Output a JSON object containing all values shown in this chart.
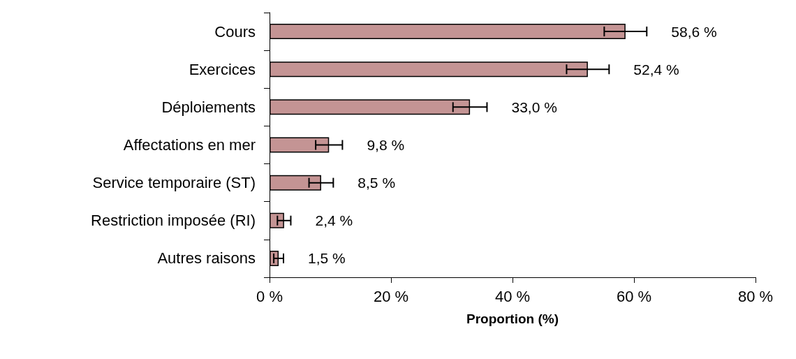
{
  "chart_data": {
    "type": "bar",
    "orientation": "horizontal",
    "xlabel": "Proportion (%)",
    "categories": [
      "Cours",
      "Exercices",
      "Déploiements",
      "Affectations en mer",
      "Service temporaire (ST)",
      "Restriction imposée (RI)",
      "Autres raisons"
    ],
    "values": [
      58.6,
      52.4,
      33.0,
      9.8,
      8.5,
      2.4,
      1.5
    ],
    "errors": [
      3.5,
      3.5,
      2.8,
      2.2,
      2.0,
      1.1,
      0.8
    ],
    "value_labels": [
      "58,6 %",
      "52,4 %",
      "33,0 %",
      "9,8 %",
      "8,5 %",
      "2,4 %",
      "1,5 %"
    ],
    "color": "#c49494",
    "xlim": [
      0,
      80
    ],
    "xticks": [
      {
        "value": 0,
        "label": "0 %"
      },
      {
        "value": 20,
        "label": "20 %"
      },
      {
        "value": 40,
        "label": "40 %"
      },
      {
        "value": 60,
        "label": "60 %"
      },
      {
        "value": 80,
        "label": "80 %"
      }
    ],
    "grid": false
  }
}
